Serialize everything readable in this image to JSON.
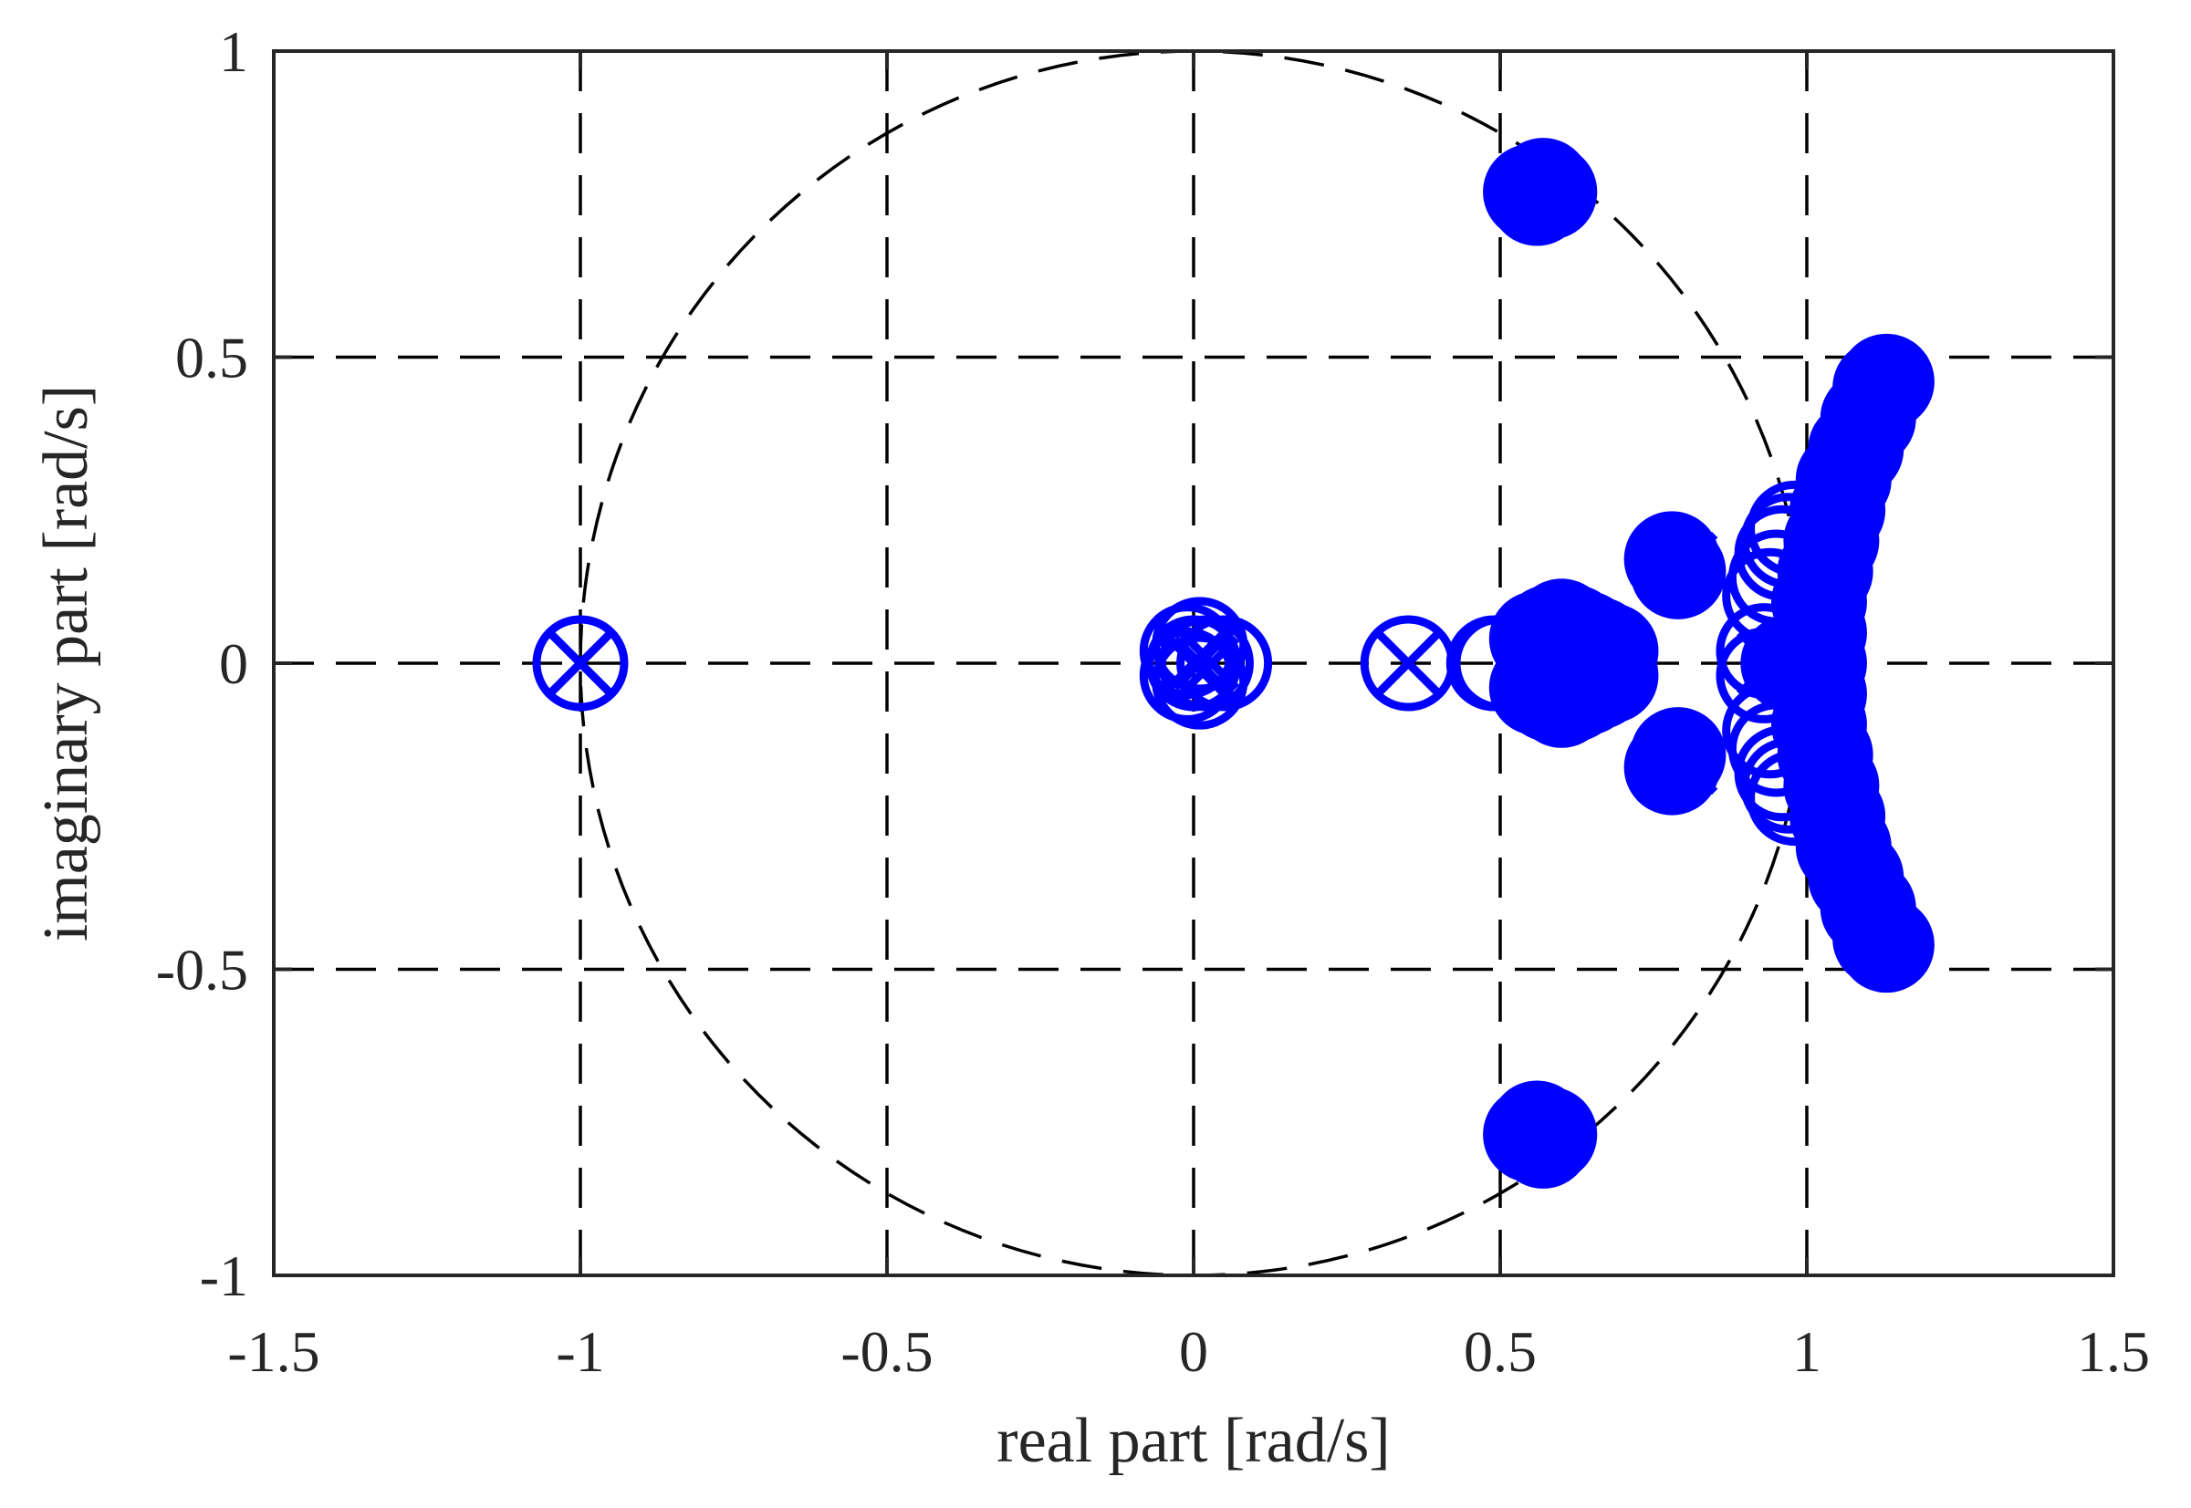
{
  "chart_data": {
    "type": "scatter",
    "title": "",
    "xlabel": "real part [rad/s]",
    "ylabel": "imaginary part [rad/s]",
    "xlim": [
      -1.5,
      1.5
    ],
    "ylim": [
      -1,
      1
    ],
    "xticks": [
      -1.5,
      -1,
      -0.5,
      0,
      0.5,
      1,
      1.5
    ],
    "xtick_labels": [
      "-1.5",
      "-1",
      "-0.5",
      "0",
      "0.5",
      "1",
      "1.5"
    ],
    "yticks": [
      -1,
      -0.5,
      0,
      0.5,
      1
    ],
    "ytick_labels": [
      "-1",
      "-0.5",
      "0",
      "0.5",
      "1"
    ],
    "grid": true,
    "grid_style": "dashed",
    "unit_circle": {
      "center": [
        0,
        0
      ],
      "radius": 1,
      "style": "dashed"
    },
    "marker_color": "#0000ff",
    "axis_color": "#262626",
    "series": [
      {
        "marker": "open-circle",
        "points": [
          [
            -1,
            0
          ],
          [
            0.35,
            0
          ],
          [
            0.49,
            0
          ],
          [
            0.5,
            0
          ],
          [
            -0.01,
            0.02
          ],
          [
            -0.01,
            -0.02
          ],
          [
            0.0,
            0.0
          ],
          [
            0.02,
            0.0
          ],
          [
            0.05,
            0.0
          ],
          [
            0.01,
            -0.03
          ],
          [
            0.01,
            0.03
          ],
          [
            0.94,
            0.11
          ],
          [
            0.94,
            -0.11
          ],
          [
            0.95,
            0.14
          ],
          [
            0.95,
            -0.14
          ],
          [
            0.96,
            0.18
          ],
          [
            0.96,
            -0.18
          ],
          [
            0.97,
            0.2
          ],
          [
            0.97,
            -0.2
          ],
          [
            0.98,
            0.22
          ],
          [
            0.98,
            -0.22
          ],
          [
            0.93,
            0.02
          ],
          [
            0.93,
            -0.02
          ]
        ]
      },
      {
        "marker": "x",
        "points": [
          [
            -1,
            0
          ],
          [
            0.35,
            0
          ],
          [
            0.0,
            0.0
          ],
          [
            0.02,
            0.01
          ],
          [
            0.02,
            -0.01
          ],
          [
            0.57,
            0.78
          ],
          [
            0.57,
            -0.78
          ],
          [
            0.8,
            0.16
          ],
          [
            0.8,
            -0.16
          ],
          [
            0.94,
            0.0
          ]
        ]
      },
      {
        "marker": "filled-circle",
        "points": [
          [
            0.55,
            0.77
          ],
          [
            0.57,
            0.78
          ],
          [
            0.56,
            0.76
          ],
          [
            0.58,
            0.77
          ],
          [
            0.55,
            -0.77
          ],
          [
            0.57,
            -0.78
          ],
          [
            0.56,
            -0.76
          ],
          [
            0.58,
            -0.77
          ],
          [
            0.78,
            0.17
          ],
          [
            0.79,
            0.15
          ],
          [
            0.78,
            -0.17
          ],
          [
            0.79,
            -0.15
          ],
          [
            0.56,
            0.04
          ],
          [
            0.58,
            0.05
          ],
          [
            0.6,
            0.06
          ],
          [
            0.62,
            0.05
          ],
          [
            0.64,
            0.04
          ],
          [
            0.66,
            0.03
          ],
          [
            0.68,
            0.02
          ],
          [
            0.56,
            -0.04
          ],
          [
            0.58,
            -0.05
          ],
          [
            0.6,
            -0.06
          ],
          [
            0.62,
            -0.05
          ],
          [
            0.64,
            -0.04
          ],
          [
            0.66,
            -0.03
          ],
          [
            0.68,
            -0.02
          ],
          [
            0.6,
            0.0
          ],
          [
            0.65,
            0.0
          ],
          [
            0.97,
            0.0
          ],
          [
            1.0,
            0.0
          ],
          [
            1.02,
            0.0
          ],
          [
            1.02,
            0.05
          ],
          [
            1.02,
            0.1
          ],
          [
            1.03,
            0.15
          ],
          [
            1.04,
            0.2
          ],
          [
            1.05,
            0.25
          ],
          [
            1.06,
            0.3
          ],
          [
            1.08,
            0.35
          ],
          [
            1.1,
            0.4
          ],
          [
            1.12,
            0.45
          ],
          [
            1.13,
            0.46
          ],
          [
            1.02,
            -0.05
          ],
          [
            1.02,
            -0.1
          ],
          [
            1.03,
            -0.15
          ],
          [
            1.04,
            -0.2
          ],
          [
            1.05,
            -0.25
          ],
          [
            1.06,
            -0.3
          ],
          [
            1.08,
            -0.35
          ],
          [
            1.1,
            -0.4
          ],
          [
            1.12,
            -0.45
          ],
          [
            1.13,
            -0.46
          ]
        ]
      }
    ]
  }
}
